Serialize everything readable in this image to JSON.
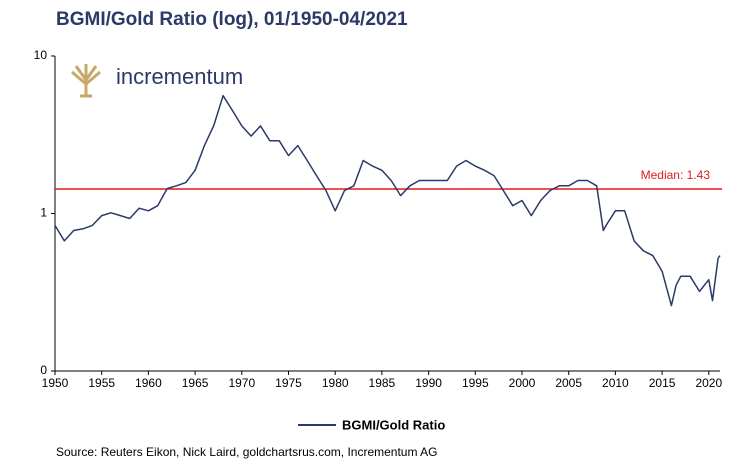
{
  "chart_data": {
    "type": "line",
    "title": "BGMI/Gold Ratio (log), 01/1950-04/2021",
    "logo": "incrementum",
    "source": "Source: Reuters Eikon, Nick Laird, goldchartsrus.com, Incrementum AG",
    "log_scale": true,
    "xlim": [
      1950,
      2021.2
    ],
    "xticks": [
      1950,
      1955,
      1960,
      1965,
      1970,
      1975,
      1980,
      1985,
      1990,
      1995,
      2000,
      2005,
      2010,
      2015,
      2020
    ],
    "ylim": [
      0.1,
      10
    ],
    "yticks": [
      {
        "value": 0.1,
        "label": "0"
      },
      1,
      10
    ],
    "median": 1.43,
    "median_label": "Median: 1.43",
    "median_color": "#e31a1c",
    "series": [
      {
        "name": "BGMI/Gold Ratio",
        "color": "#2b3a67",
        "x": [
          1950,
          1951,
          1952,
          1953,
          1954,
          1955,
          1956,
          1957,
          1958,
          1959,
          1960,
          1961,
          1962,
          1963,
          1964,
          1965,
          1966,
          1967,
          1968,
          1969,
          1970,
          1971,
          1972,
          1973,
          1974,
          1975,
          1976,
          1977,
          1978,
          1979,
          1980,
          1981,
          1982,
          1983,
          1984,
          1985,
          1986,
          1987,
          1988,
          1989,
          1990,
          1991,
          1992,
          1993,
          1994,
          1995,
          1996,
          1997,
          1998,
          1999,
          2000,
          2001,
          2002,
          2003,
          2004,
          2005,
          2006,
          2007,
          2008,
          2008.7,
          2009,
          2010,
          2011,
          2012,
          2013,
          2014,
          2015,
          2016,
          2016.5,
          2017,
          2018,
          2019,
          2020,
          2020.4,
          2021,
          2021.2
        ],
        "values": [
          0.84,
          0.67,
          0.78,
          0.8,
          0.84,
          0.97,
          1.01,
          0.97,
          0.93,
          1.08,
          1.04,
          1.12,
          1.44,
          1.5,
          1.57,
          1.88,
          2.7,
          3.62,
          5.6,
          4.5,
          3.6,
          3.1,
          3.6,
          2.9,
          2.9,
          2.33,
          2.7,
          2.17,
          1.74,
          1.4,
          1.04,
          1.4,
          1.5,
          2.17,
          2.0,
          1.88,
          1.62,
          1.3,
          1.5,
          1.62,
          1.62,
          1.62,
          1.62,
          2.0,
          2.17,
          2.0,
          1.88,
          1.74,
          1.4,
          1.12,
          1.21,
          0.97,
          1.21,
          1.4,
          1.5,
          1.5,
          1.62,
          1.62,
          1.5,
          0.78,
          0.84,
          1.04,
          1.04,
          0.67,
          0.58,
          0.54,
          0.43,
          0.26,
          0.35,
          0.4,
          0.4,
          0.32,
          0.38,
          0.28,
          0.52,
          0.54
        ]
      }
    ]
  }
}
